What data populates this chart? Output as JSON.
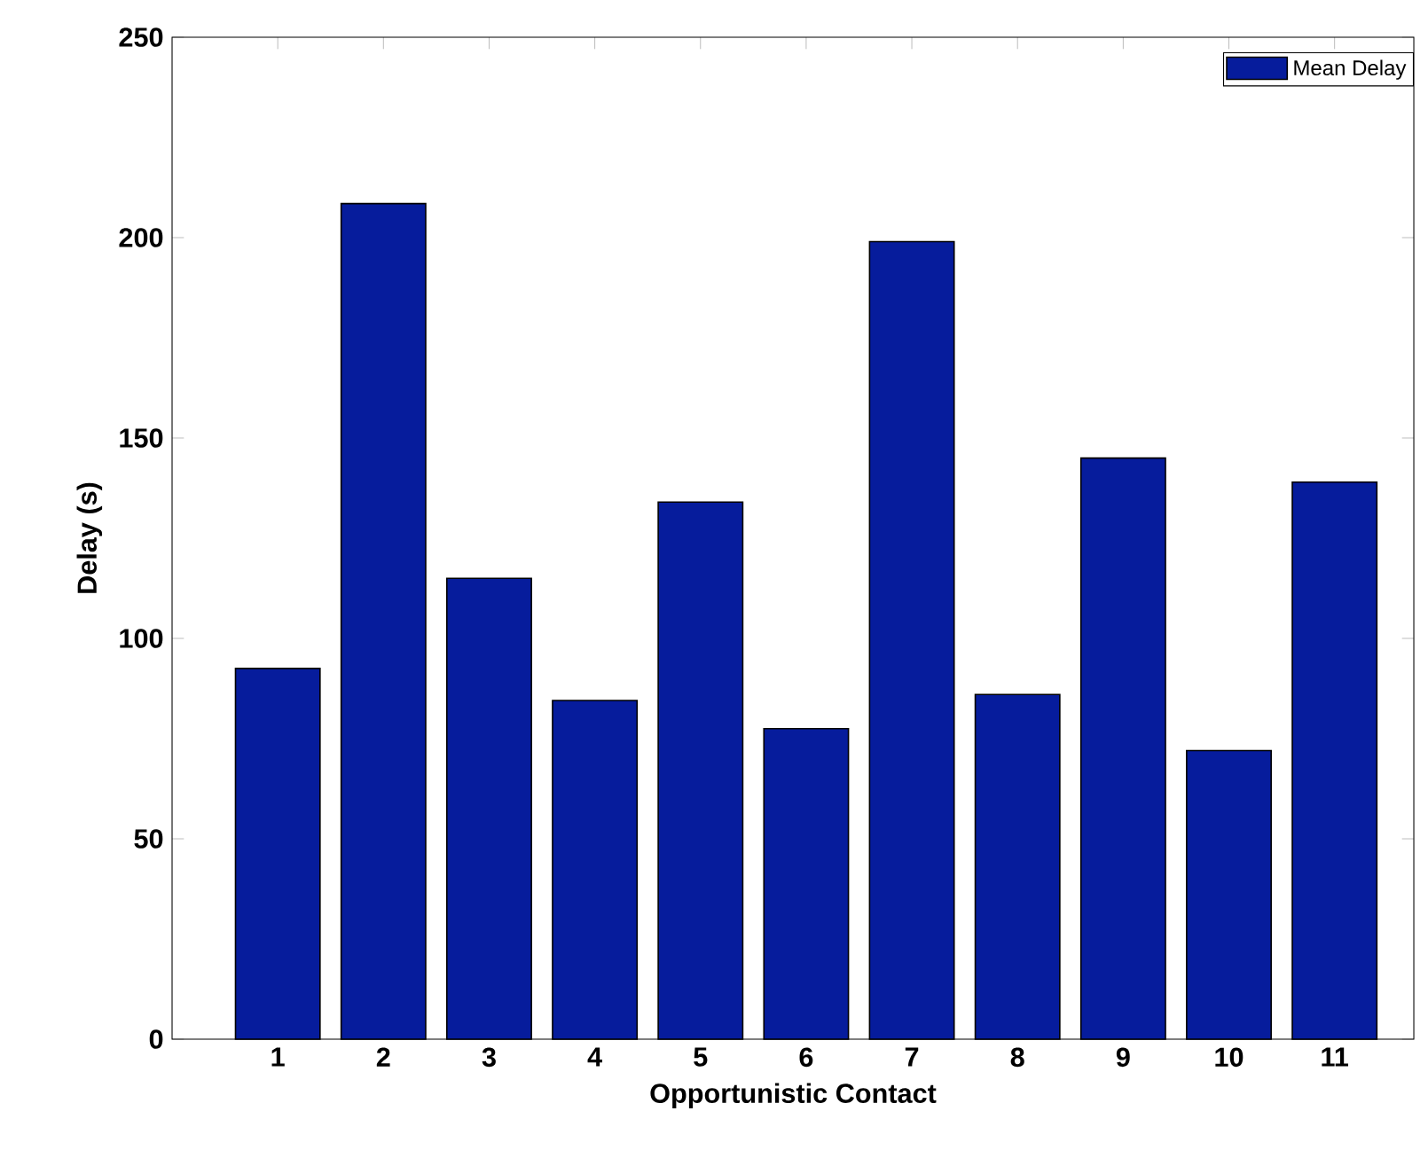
{
  "chart_data": {
    "type": "bar",
    "xlabel": "Opportunistic Contact",
    "ylabel": "Delay (s)",
    "categories": [
      "1",
      "2",
      "3",
      "4",
      "5",
      "6",
      "7",
      "8",
      "9",
      "10",
      "11"
    ],
    "series": [
      {
        "name": "Mean Delay",
        "color": "#061c9c",
        "values": [
          92.5,
          208.5,
          115,
          84.5,
          134,
          77.5,
          199,
          86,
          145,
          72,
          139
        ]
      }
    ],
    "ylim": [
      0,
      250
    ],
    "yticks": [
      0,
      50,
      100,
      150,
      200,
      250
    ],
    "legend": "top right"
  }
}
